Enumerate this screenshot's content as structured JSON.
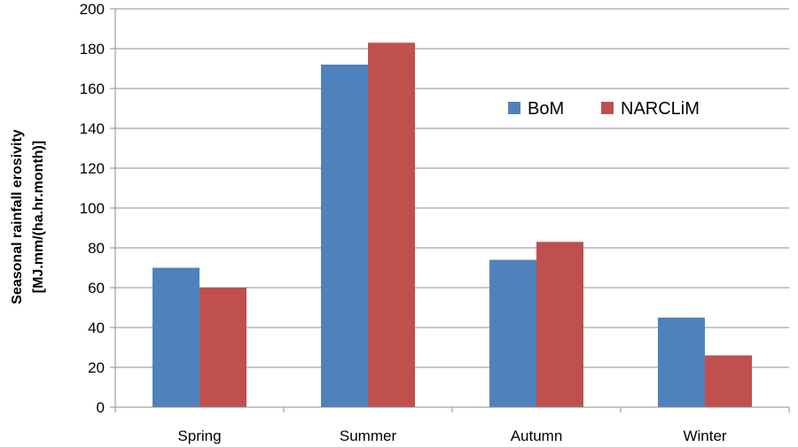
{
  "chart_data": {
    "type": "bar",
    "categories": [
      "Spring",
      "Summer",
      "Autumn",
      "Winter"
    ],
    "series": [
      {
        "name": "BoM",
        "color": "#4f81bd",
        "values": [
          70,
          172,
          74,
          45
        ]
      },
      {
        "name": "NARCLiM",
        "color": "#c0504d",
        "values": [
          60,
          183,
          83,
          26
        ]
      }
    ],
    "ylabel_lines": [
      "Seasonal rainfall erosivity",
      "[MJ.mm/(ha.hr.month)]"
    ],
    "xlabel": "",
    "title": "",
    "ylim": [
      0,
      200
    ],
    "yticks": [
      0,
      20,
      40,
      60,
      80,
      100,
      120,
      140,
      160,
      180,
      200
    ],
    "grid": true,
    "legend_position": "upper-right-inside"
  }
}
